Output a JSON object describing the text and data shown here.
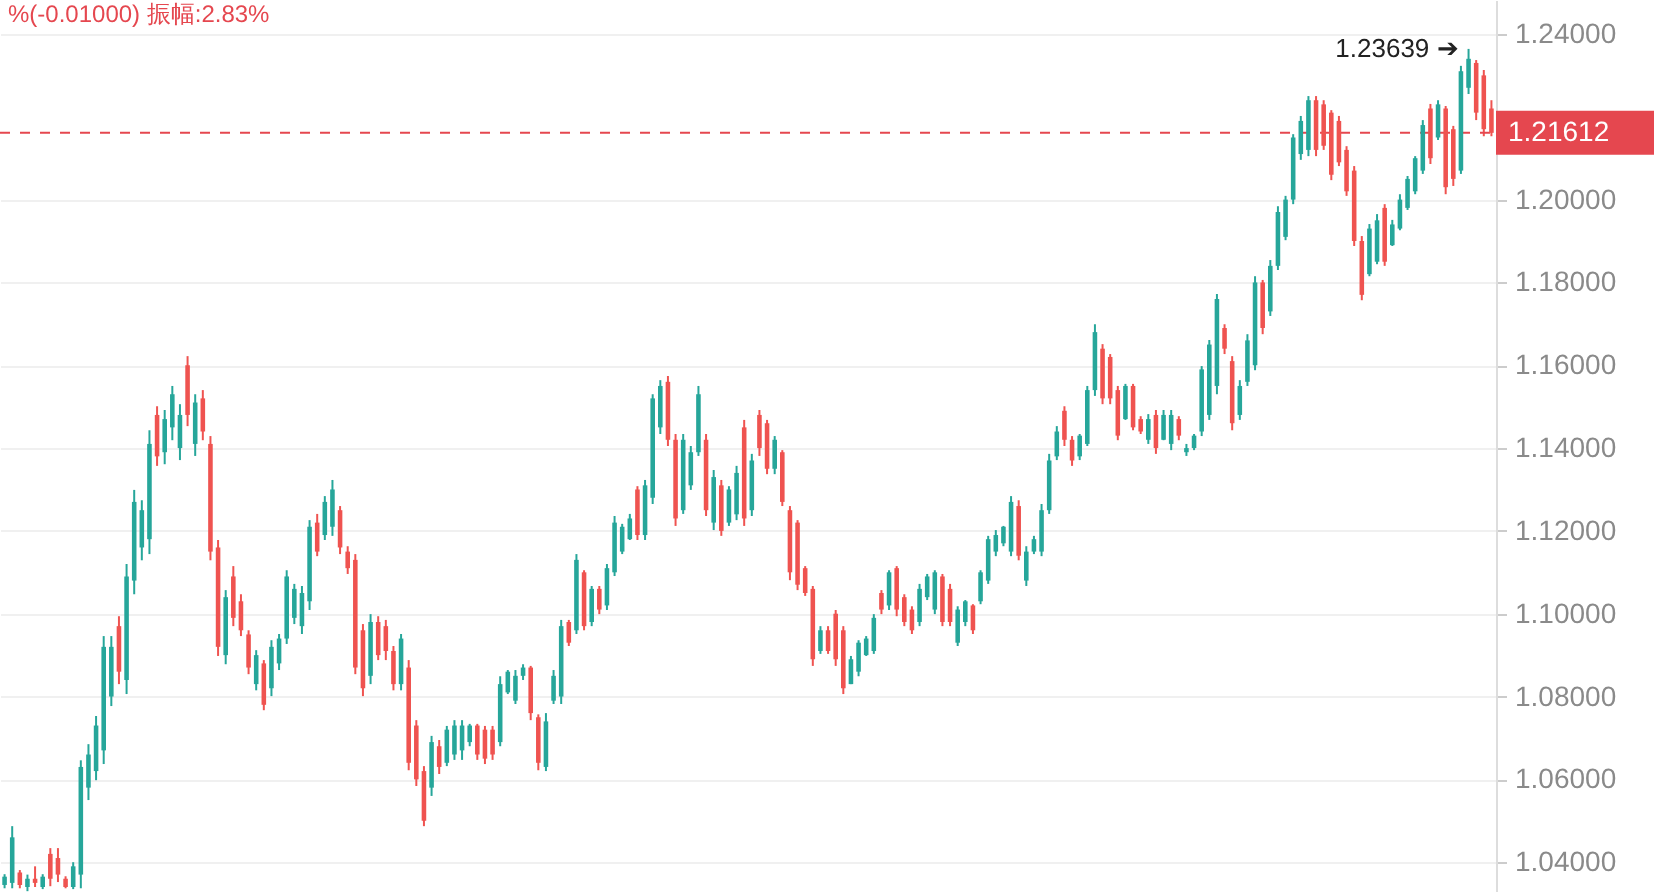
{
  "chart_data": {
    "type": "candlestick",
    "categories": [
      null,
      null,
      null,
      null,
      null,
      null,
      null,
      null,
      null,
      null,
      null,
      null,
      null,
      null,
      null,
      null,
      null,
      null,
      null,
      null,
      null,
      null,
      null,
      null,
      null,
      null,
      null,
      null,
      null,
      null,
      null,
      null,
      null,
      null,
      null,
      null,
      null,
      null,
      null,
      null,
      null,
      null,
      null,
      null,
      null,
      null,
      null,
      null,
      null,
      null,
      null,
      null,
      null,
      null,
      null,
      null,
      null,
      null,
      null,
      null,
      null,
      null,
      null,
      null,
      null,
      null,
      null,
      null,
      null,
      null,
      null,
      null,
      null,
      null,
      null,
      null,
      null,
      null,
      null,
      null,
      null,
      null,
      null,
      null,
      null,
      null,
      null,
      null,
      null,
      null,
      null,
      null,
      null,
      null,
      null,
      null,
      null,
      null,
      null,
      null,
      null,
      null,
      null,
      null,
      null,
      null,
      null,
      null,
      null,
      null,
      null,
      null,
      null,
      null,
      null,
      null,
      null,
      null,
      null,
      null,
      null,
      null,
      null,
      null,
      null,
      null,
      null,
      null,
      null,
      null,
      null,
      null,
      null,
      null,
      null,
      null,
      null,
      null,
      null,
      null,
      null,
      null,
      null,
      null,
      null,
      null,
      null,
      null,
      null,
      null,
      null,
      null,
      null,
      null,
      null,
      null,
      null,
      null,
      null,
      null,
      null,
      null,
      null,
      null,
      null,
      null,
      null,
      null,
      null,
      null,
      null,
      null,
      null,
      null,
      null,
      null,
      null,
      null,
      null,
      null,
      null,
      null,
      null,
      null,
      null,
      null,
      null,
      null,
      null,
      null,
      null,
      null,
      null,
      null,
      null,
      null
    ],
    "ohlc": [
      [
        1.0345,
        1.0371,
        1.0337,
        1.0365
      ],
      [
        1.035,
        1.0487,
        1.0337,
        1.046
      ],
      [
        1.0375,
        1.0381,
        1.0337,
        1.0345
      ],
      [
        1.034,
        1.037,
        1.033,
        1.036
      ],
      [
        1.036,
        1.039,
        1.034,
        1.035
      ],
      [
        1.034,
        1.0371,
        1.0335,
        1.0365
      ],
      [
        1.042,
        1.0434,
        1.0342,
        1.036
      ],
      [
        1.041,
        1.0434,
        1.0352,
        1.037
      ],
      [
        1.036,
        1.0366,
        1.0337,
        1.034
      ],
      [
        1.034,
        1.04,
        1.0335,
        1.039
      ],
      [
        1.037,
        1.0646,
        1.0337,
        1.063
      ],
      [
        1.058,
        1.0685,
        1.055,
        1.066
      ],
      [
        1.062,
        1.0753,
        1.0598,
        1.073
      ],
      [
        1.067,
        1.0946,
        1.0637,
        1.092
      ],
      [
        1.08,
        1.0946,
        1.0777,
        1.092
      ],
      [
        1.097,
        1.0994,
        1.083,
        1.086
      ],
      [
        1.084,
        1.112,
        1.0806,
        1.109
      ],
      [
        1.108,
        1.1299,
        1.1047,
        1.127
      ],
      [
        1.116,
        1.1274,
        1.1129,
        1.125
      ],
      [
        1.118,
        1.1443,
        1.1144,
        1.141
      ],
      [
        1.148,
        1.1501,
        1.1357,
        1.138
      ],
      [
        1.139,
        1.1492,
        1.1361,
        1.147
      ],
      [
        1.145,
        1.155,
        1.1419,
        1.153
      ],
      [
        1.14,
        1.1506,
        1.1371,
        1.148
      ],
      [
        1.16,
        1.1622,
        1.1453,
        1.148
      ],
      [
        1.141,
        1.153,
        1.1381,
        1.151
      ],
      [
        1.152,
        1.154,
        1.1419,
        1.144
      ],
      [
        1.141,
        1.1429,
        1.1129,
        1.115
      ],
      [
        1.116,
        1.1178,
        1.0898,
        1.092
      ],
      [
        1.09,
        1.1057,
        1.0878,
        1.104
      ],
      [
        1.109,
        1.1115,
        1.097,
        1.099
      ],
      [
        1.103,
        1.1047,
        1.0946,
        1.096
      ],
      [
        1.095,
        1.096,
        1.0854,
        1.087
      ],
      [
        1.083,
        1.0912,
        1.0815,
        1.09
      ],
      [
        1.088,
        1.0888,
        1.0767,
        1.078
      ],
      [
        1.082,
        1.0936,
        1.0801,
        1.092
      ],
      [
        1.088,
        1.0951,
        1.0864,
        1.094
      ],
      [
        1.094,
        1.1105,
        1.0927,
        1.109
      ],
      [
        1.099,
        1.1072,
        1.0975,
        1.106
      ],
      [
        1.097,
        1.1067,
        1.0951,
        1.105
      ],
      [
        1.103,
        1.1226,
        1.1009,
        1.121
      ],
      [
        1.122,
        1.1241,
        1.1139,
        1.115
      ],
      [
        1.119,
        1.1284,
        1.1178,
        1.127
      ],
      [
        1.121,
        1.1323,
        1.1188,
        1.13
      ],
      [
        1.125,
        1.126,
        1.1144,
        1.116
      ],
      [
        1.115,
        1.1163,
        1.1096,
        1.111
      ],
      [
        1.113,
        1.1144,
        1.0854,
        1.087
      ],
      [
        1.096,
        1.0975,
        1.0801,
        1.082
      ],
      [
        1.085,
        1.0999,
        1.083,
        1.098
      ],
      [
        1.098,
        1.0994,
        1.0888,
        1.09
      ],
      [
        1.097,
        1.0985,
        1.0888,
        1.091
      ],
      [
        1.091,
        1.0922,
        1.0815,
        1.083
      ],
      [
        1.083,
        1.0951,
        1.0815,
        1.094
      ],
      [
        1.087,
        1.0888,
        1.0622,
        1.064
      ],
      [
        1.073,
        1.0743,
        1.0584,
        1.06
      ],
      [
        1.062,
        1.0632,
        1.0487,
        1.05
      ],
      [
        1.058,
        1.0705,
        1.056,
        1.069
      ],
      [
        1.068,
        1.0695,
        1.0613,
        1.063
      ],
      [
        1.064,
        1.0729,
        1.0632,
        1.072
      ],
      [
        1.066,
        1.0743,
        1.0647,
        1.073
      ],
      [
        1.067,
        1.0743,
        1.0647,
        1.073
      ],
      [
        1.069,
        1.0734,
        1.068,
        1.073
      ],
      [
        1.073,
        1.0734,
        1.0647,
        1.066
      ],
      [
        1.072,
        1.0729,
        1.0637,
        1.065
      ],
      [
        1.072,
        1.0729,
        1.0647,
        1.066
      ],
      [
        1.069,
        1.0849,
        1.068,
        1.083
      ],
      [
        1.081,
        1.0864,
        1.0806,
        1.086
      ],
      [
        1.079,
        1.0864,
        1.0782,
        1.085
      ],
      [
        1.085,
        1.0878,
        1.084,
        1.087
      ],
      [
        1.087,
        1.0874,
        1.0743,
        1.076
      ],
      [
        1.075,
        1.0757,
        1.0622,
        1.064
      ],
      [
        1.063,
        1.076,
        1.062,
        1.074
      ],
      [
        1.079,
        1.0864,
        1.0782,
        1.085
      ],
      [
        1.08,
        1.0985,
        1.0782,
        1.097
      ],
      [
        1.098,
        1.0985,
        1.0922,
        1.093
      ],
      [
        1.096,
        1.1144,
        1.0951,
        1.113
      ],
      [
        1.11,
        1.1105,
        1.096,
        1.097
      ],
      [
        1.098,
        1.1067,
        1.097,
        1.106
      ],
      [
        1.106,
        1.1067,
        1.0999,
        1.101
      ],
      [
        1.102,
        1.112,
        1.1009,
        1.111
      ],
      [
        1.11,
        1.1236,
        1.1091,
        1.122
      ],
      [
        1.115,
        1.1217,
        1.1144,
        1.121
      ],
      [
        1.118,
        1.1241,
        1.1178,
        1.123
      ],
      [
        1.13,
        1.1308,
        1.1178,
        1.119
      ],
      [
        1.119,
        1.1323,
        1.1178,
        1.131
      ],
      [
        1.128,
        1.153,
        1.1265,
        1.152
      ],
      [
        1.145,
        1.1564,
        1.1434,
        1.155
      ],
      [
        1.156,
        1.1574,
        1.1405,
        1.142
      ],
      [
        1.142,
        1.1434,
        1.1212,
        1.123
      ],
      [
        1.125,
        1.1434,
        1.1241,
        1.142
      ],
      [
        1.131,
        1.1405,
        1.1299,
        1.139
      ],
      [
        1.139,
        1.155,
        1.1381,
        1.153
      ],
      [
        1.142,
        1.1434,
        1.1236,
        1.125
      ],
      [
        1.122,
        1.1347,
        1.1202,
        1.133
      ],
      [
        1.131,
        1.1323,
        1.1188,
        1.12
      ],
      [
        1.122,
        1.1308,
        1.1212,
        1.13
      ],
      [
        1.124,
        1.1357,
        1.1226,
        1.134
      ],
      [
        1.145,
        1.1468,
        1.1212,
        1.123
      ],
      [
        1.125,
        1.1386,
        1.1236,
        1.137
      ],
      [
        1.148,
        1.1492,
        1.1381,
        1.14
      ],
      [
        1.146,
        1.1468,
        1.1337,
        1.135
      ],
      [
        1.135,
        1.1429,
        1.1337,
        1.142
      ],
      [
        1.139,
        1.1395,
        1.126,
        1.127
      ],
      [
        1.125,
        1.126,
        1.1081,
        1.11
      ],
      [
        1.122,
        1.1226,
        1.1057,
        1.107
      ],
      [
        1.111,
        1.1115,
        1.1043,
        1.105
      ],
      [
        1.106,
        1.1067,
        1.0874,
        1.089
      ],
      [
        1.091,
        1.097,
        1.0903,
        1.096
      ],
      [
        1.096,
        1.097,
        1.0903,
        1.091
      ],
      [
        1.1,
        1.1009,
        1.0874,
        1.089
      ],
      [
        1.096,
        1.097,
        1.0806,
        1.082
      ],
      [
        1.083,
        1.0898,
        1.083,
        1.089
      ],
      [
        1.086,
        1.0936,
        1.0849,
        1.093
      ],
      [
        1.09,
        1.0946,
        1.0898,
        1.094
      ],
      [
        1.091,
        1.0999,
        1.0903,
        1.099
      ],
      [
        1.105,
        1.1057,
        1.0999,
        1.101
      ],
      [
        1.102,
        1.1105,
        1.1009,
        1.11
      ],
      [
        1.111,
        1.1115,
        1.0994,
        1.101
      ],
      [
        1.104,
        1.1047,
        1.097,
        1.098
      ],
      [
        1.101,
        1.1018,
        1.0951,
        1.096
      ],
      [
        1.098,
        1.1072,
        1.097,
        1.106
      ],
      [
        1.104,
        1.1096,
        1.1033,
        1.109
      ],
      [
        1.101,
        1.1105,
        1.0999,
        1.11
      ],
      [
        1.109,
        1.1096,
        1.097,
        1.098
      ],
      [
        1.106,
        1.1072,
        1.097,
        1.098
      ],
      [
        1.093,
        1.1018,
        1.0922,
        1.101
      ],
      [
        1.098,
        1.1033,
        1.097,
        1.103
      ],
      [
        1.102,
        1.1023,
        1.0951,
        1.096
      ],
      [
        1.103,
        1.1105,
        1.1023,
        1.11
      ],
      [
        1.108,
        1.1188,
        1.1072,
        1.118
      ],
      [
        1.115,
        1.1202,
        1.1139,
        1.119
      ],
      [
        1.117,
        1.1212,
        1.1163,
        1.121
      ],
      [
        1.115,
        1.1284,
        1.1139,
        1.127
      ],
      [
        1.126,
        1.1274,
        1.1129,
        1.114
      ],
      [
        1.108,
        1.1163,
        1.1067,
        1.115
      ],
      [
        1.115,
        1.1188,
        1.1144,
        1.118
      ],
      [
        1.115,
        1.1265,
        1.1139,
        1.125
      ],
      [
        1.125,
        1.1386,
        1.1241,
        1.137
      ],
      [
        1.138,
        1.1453,
        1.1371,
        1.144
      ],
      [
        1.149,
        1.1501,
        1.1405,
        1.142
      ],
      [
        1.142,
        1.1429,
        1.1357,
        1.137
      ],
      [
        1.138,
        1.1434,
        1.1371,
        1.143
      ],
      [
        1.141,
        1.155,
        1.1405,
        1.154
      ],
      [
        1.154,
        1.1699,
        1.1526,
        1.168
      ],
      [
        1.164,
        1.1651,
        1.1506,
        1.152
      ],
      [
        1.162,
        1.1627,
        1.1506,
        1.152
      ],
      [
        1.154,
        1.155,
        1.1419,
        1.143
      ],
      [
        1.147,
        1.1555,
        1.1468,
        1.155
      ],
      [
        1.155,
        1.1555,
        1.1443,
        1.145
      ],
      [
        1.147,
        1.1477,
        1.1434,
        1.144
      ],
      [
        1.142,
        1.1482,
        1.141,
        1.147
      ],
      [
        1.148,
        1.1492,
        1.1386,
        1.14
      ],
      [
        1.142,
        1.1492,
        1.1419,
        1.148
      ],
      [
        1.141,
        1.1492,
        1.1395,
        1.148
      ],
      [
        1.147,
        1.1477,
        1.1419,
        1.143
      ],
      [
        1.139,
        1.141,
        1.1381,
        1.14
      ],
      [
        1.14,
        1.1434,
        1.1395,
        1.143
      ],
      [
        1.144,
        1.1598,
        1.1429,
        1.159
      ],
      [
        1.148,
        1.1661,
        1.1468,
        1.165
      ],
      [
        1.155,
        1.1772,
        1.153,
        1.176
      ],
      [
        1.169,
        1.1699,
        1.1627,
        1.164
      ],
      [
        1.161,
        1.1622,
        1.1443,
        1.146
      ],
      [
        1.148,
        1.1564,
        1.1468,
        1.155
      ],
      [
        1.156,
        1.1675,
        1.155,
        1.166
      ],
      [
        1.16,
        1.1815,
        1.1588,
        1.18
      ],
      [
        1.18,
        1.1806,
        1.1675,
        1.169
      ],
      [
        1.173,
        1.1854,
        1.1719,
        1.184
      ],
      [
        1.184,
        1.1984,
        1.183,
        1.197
      ],
      [
        1.191,
        1.2009,
        1.1902,
        1.2
      ],
      [
        1.2,
        1.2158,
        1.1989,
        1.215
      ],
      [
        1.211,
        1.2202,
        1.2096,
        1.219
      ],
      [
        1.212,
        1.225,
        1.2105,
        1.224
      ],
      [
        1.224,
        1.225,
        1.2105,
        1.212
      ],
      [
        1.223,
        1.224,
        1.212,
        1.213
      ],
      [
        1.221,
        1.2216,
        1.2047,
        1.206
      ],
      [
        1.219,
        1.2202,
        1.2081,
        1.209
      ],
      [
        1.212,
        1.2129,
        1.2009,
        1.202
      ],
      [
        1.207,
        1.2081,
        1.1888,
        1.19
      ],
      [
        1.19,
        1.1912,
        1.1757,
        1.177
      ],
      [
        1.182,
        1.1941,
        1.1815,
        1.193
      ],
      [
        1.185,
        1.1965,
        1.1844,
        1.195
      ],
      [
        1.198,
        1.1989,
        1.184,
        1.185
      ],
      [
        1.189,
        1.1951,
        1.1888,
        1.194
      ],
      [
        1.193,
        1.2013,
        1.1926,
        1.2
      ],
      [
        1.198,
        1.2057,
        1.1975,
        1.205
      ],
      [
        1.202,
        1.2105,
        1.2013,
        1.21
      ],
      [
        1.207,
        1.2192,
        1.2062,
        1.218
      ],
      [
        1.222,
        1.2231,
        1.2086,
        1.21
      ],
      [
        1.215,
        1.224,
        1.2144,
        1.223
      ],
      [
        1.222,
        1.2226,
        1.2013,
        1.203
      ],
      [
        1.217,
        1.2178,
        1.2033,
        1.205
      ],
      [
        1.207,
        1.2323,
        1.2062,
        1.231
      ],
      [
        1.227,
        1.23639,
        1.2255,
        1.234
      ],
      [
        1.233,
        1.2337,
        1.2192,
        1.221
      ],
      [
        1.23,
        1.2313,
        1.2153,
        1.217
      ],
      [
        1.222,
        1.224,
        1.2153,
        1.21612
      ]
    ],
    "colors": [
      "#26a69a",
      "#26a69a",
      "#ef5350",
      "#26a69a",
      "#ef5350",
      "#26a69a",
      "#ef5350",
      "#ef5350",
      "#ef5350",
      "#26a69a",
      "#26a69a",
      "#26a69a",
      "#26a69a",
      "#26a69a",
      "#26a69a",
      "#ef5350",
      "#26a69a",
      "#26a69a",
      "#26a69a",
      "#26a69a",
      "#ef5350",
      "#26a69a",
      "#26a69a",
      "#26a69a",
      "#ef5350",
      "#26a69a",
      "#ef5350",
      "#ef5350",
      "#ef5350",
      "#26a69a",
      "#ef5350",
      "#ef5350",
      "#ef5350",
      "#26a69a",
      "#ef5350",
      "#26a69a",
      "#26a69a",
      "#26a69a",
      "#26a69a",
      "#26a69a",
      "#26a69a",
      "#ef5350",
      "#26a69a",
      "#26a69a",
      "#ef5350",
      "#ef5350",
      "#ef5350",
      "#ef5350",
      "#26a69a",
      "#ef5350",
      "#ef5350",
      "#ef5350",
      "#26a69a",
      "#ef5350",
      "#ef5350",
      "#ef5350",
      "#26a69a",
      "#ef5350",
      "#26a69a",
      "#26a69a",
      "#26a69a",
      "#26a69a",
      "#ef5350",
      "#ef5350",
      "#ef5350",
      "#26a69a",
      "#26a69a",
      "#26a69a",
      "#26a69a",
      "#ef5350",
      "#ef5350",
      "#26a69a",
      "#26a69a",
      "#26a69a",
      "#ef5350",
      "#26a69a",
      "#ef5350",
      "#26a69a",
      "#ef5350",
      "#26a69a",
      "#26a69a",
      "#26a69a",
      "#26a69a",
      "#ef5350",
      "#26a69a",
      "#26a69a",
      "#26a69a",
      "#ef5350",
      "#ef5350",
      "#26a69a",
      "#26a69a",
      "#26a69a",
      "#ef5350",
      "#26a69a",
      "#ef5350",
      "#26a69a",
      "#26a69a",
      "#ef5350",
      "#26a69a",
      "#ef5350",
      "#ef5350",
      "#26a69a",
      "#ef5350",
      "#ef5350",
      "#ef5350",
      "#ef5350",
      "#ef5350",
      "#26a69a",
      "#ef5350",
      "#ef5350",
      "#ef5350",
      "#26a69a",
      "#26a69a",
      "#26a69a",
      "#26a69a",
      "#ef5350",
      "#26a69a",
      "#ef5350",
      "#ef5350",
      "#ef5350",
      "#26a69a",
      "#26a69a",
      "#26a69a",
      "#ef5350",
      "#ef5350",
      "#26a69a",
      "#26a69a",
      "#ef5350",
      "#26a69a",
      "#26a69a",
      "#26a69a",
      "#26a69a",
      "#26a69a",
      "#ef5350",
      "#26a69a",
      "#26a69a",
      "#26a69a",
      "#26a69a",
      "#26a69a",
      "#ef5350",
      "#ef5350",
      "#26a69a",
      "#26a69a",
      "#26a69a",
      "#ef5350",
      "#ef5350",
      "#ef5350",
      "#26a69a",
      "#ef5350",
      "#ef5350",
      "#26a69a",
      "#ef5350",
      "#26a69a",
      "#26a69a",
      "#ef5350",
      "#26a69a",
      "#26a69a",
      "#26a69a",
      "#26a69a",
      "#26a69a",
      "#ef5350",
      "#ef5350",
      "#26a69a",
      "#26a69a",
      "#26a69a",
      "#ef5350",
      "#26a69a",
      "#26a69a",
      "#26a69a",
      "#26a69a",
      "#26a69a",
      "#26a69a",
      "#ef5350",
      "#ef5350",
      "#ef5350",
      "#ef5350",
      "#ef5350",
      "#ef5350",
      "#ef5350",
      "#26a69a",
      "#26a69a",
      "#ef5350",
      "#26a69a",
      "#26a69a",
      "#26a69a",
      "#26a69a",
      "#26a69a",
      "#ef5350",
      "#26a69a",
      "#ef5350",
      "#ef5350",
      "#26a69a",
      "#26a69a",
      "#ef5350",
      "#ef5350",
      "#ef5350"
    ],
    "ylim": [
      1.0328,
      1.2482
    ],
    "yticks": [
      {
        "value": 1.04,
        "label": "1.04000"
      },
      {
        "value": 1.06,
        "label": "1.06000"
      },
      {
        "value": 1.08,
        "label": "1.08000"
      },
      {
        "value": 1.1,
        "label": "1.10000"
      },
      {
        "value": 1.12,
        "label": "1.12000"
      },
      {
        "value": 1.14,
        "label": "1.14000"
      },
      {
        "value": 1.16,
        "label": "1.16000"
      },
      {
        "value": 1.18,
        "label": "1.18000"
      },
      {
        "value": 1.2,
        "label": "1.20000"
      },
      {
        "value": 1.24,
        "label": "1.24000"
      }
    ],
    "grid": "y",
    "tick_labels": "y",
    "ref_lines": [
      {
        "axis": "y",
        "value": 1.21612,
        "label": "1.21612",
        "color": "#e5474f",
        "line_style": "dashed"
      }
    ],
    "annotations": [
      "%(-0.01000)  振幅:2.83%",
      "1.23639 ➔"
    ]
  }
}
